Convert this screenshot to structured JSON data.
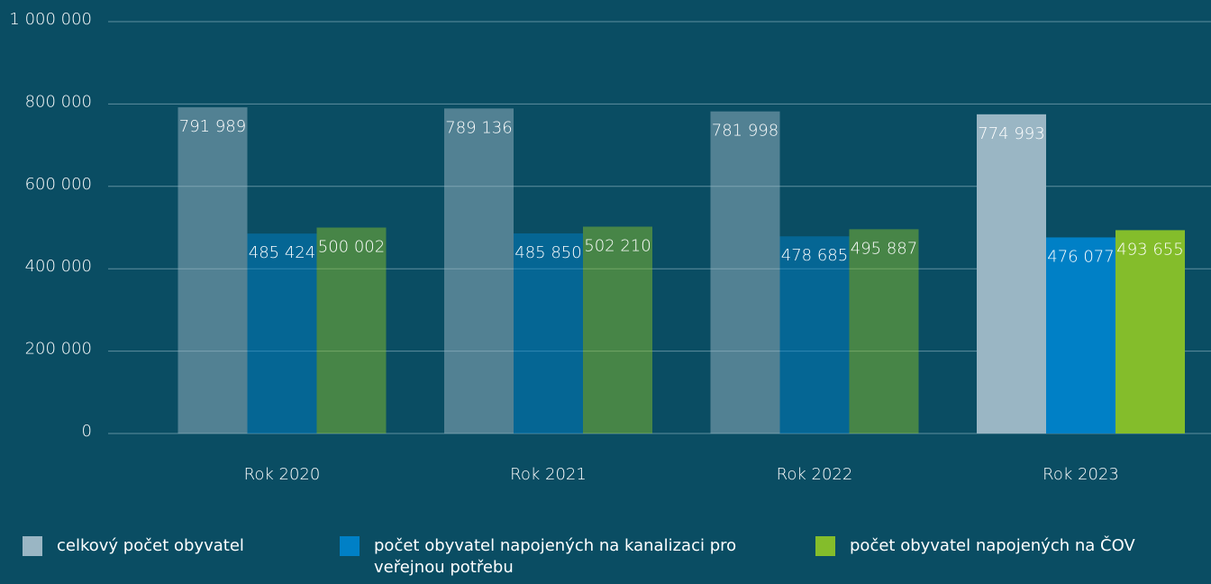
{
  "chart_data": {
    "type": "bar",
    "categories": [
      "Rok 2020",
      "Rok 2021",
      "Rok 2022",
      "Rok 2023"
    ],
    "series": [
      {
        "name": "celkový počet obyvatel",
        "color": "#9ab6c4",
        "values": [
          791989,
          789136,
          781998,
          774993
        ],
        "value_labels": [
          "791 989",
          "789 136",
          "781 998",
          "774 993"
        ]
      },
      {
        "name": "počet obyvatel napojených na kanalizaci pro veřejnou potřebu",
        "color": "#0080c6",
        "values": [
          485424,
          485850,
          478685,
          476077
        ],
        "value_labels": [
          "485 424",
          "485 850",
          "478 685",
          "476 077"
        ]
      },
      {
        "name": "počet obyvatel napojených na ČOV",
        "color": "#84bd2b",
        "values": [
          500002,
          502210,
          495887,
          493655
        ],
        "value_labels": [
          "500 002",
          "502 210",
          "495 887",
          "493 655"
        ]
      }
    ],
    "ylim": [
      0,
      1000000
    ],
    "yticks": [
      {
        "value": 0,
        "label": "0"
      },
      {
        "value": 200000,
        "label": "200 000"
      },
      {
        "value": 400000,
        "label": "400 000"
      },
      {
        "value": 600000,
        "label": "600 000"
      },
      {
        "value": 800000,
        "label": "800 000"
      },
      {
        "value": 1000000,
        "label": "1 000 000"
      }
    ],
    "grid": true,
    "legend": "bottom"
  }
}
